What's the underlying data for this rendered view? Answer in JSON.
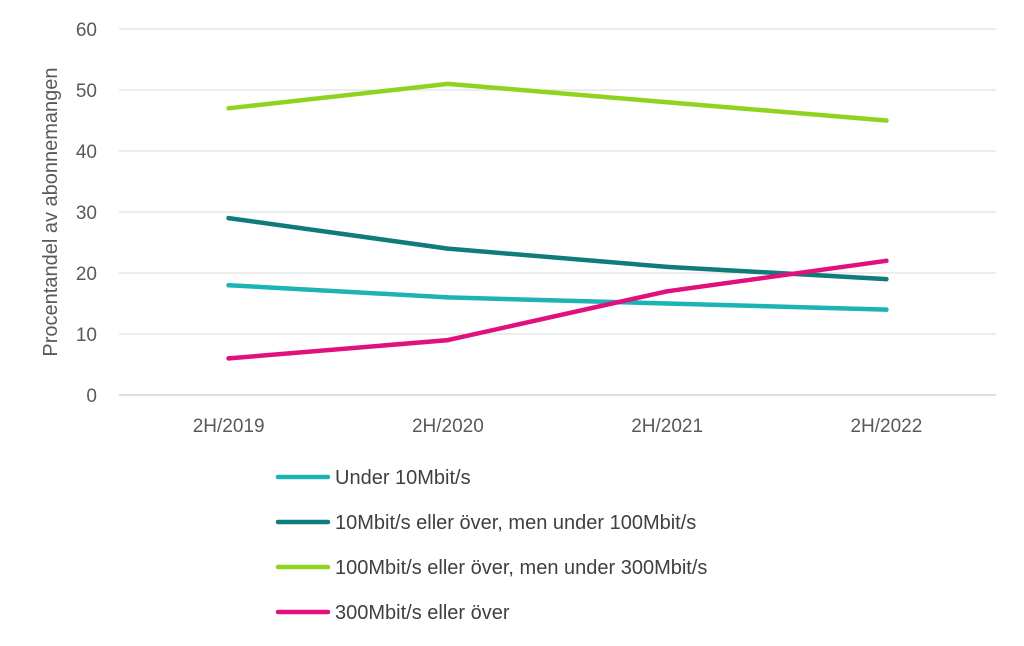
{
  "chart_data": {
    "type": "line",
    "title": "",
    "xlabel": "",
    "ylabel": "Procentandel av abonnemangen",
    "ylim": [
      0,
      60
    ],
    "yticks": [
      "0",
      "10",
      "20",
      "30",
      "40",
      "50",
      "60"
    ],
    "categories": [
      "2H/2019",
      "2H/2020",
      "2H/2021",
      "2H/2022"
    ],
    "grid": true,
    "legend_position": "bottom",
    "series": [
      {
        "name": "Under 10Mbit/s",
        "color": "#1BB3B3",
        "values": [
          18,
          16,
          15,
          14
        ]
      },
      {
        "name": "10Mbit/s eller över, men under 100Mbit/s",
        "color": "#0E7C7B",
        "values": [
          29,
          24,
          21,
          19
        ]
      },
      {
        "name": "100Mbit/s eller över, men under 300Mbit/s",
        "color": "#8FD321",
        "values": [
          47,
          51,
          48,
          45
        ]
      },
      {
        "name": "300Mbit/s eller över",
        "color": "#E0117F",
        "values": [
          6,
          9,
          17,
          22
        ]
      }
    ]
  }
}
